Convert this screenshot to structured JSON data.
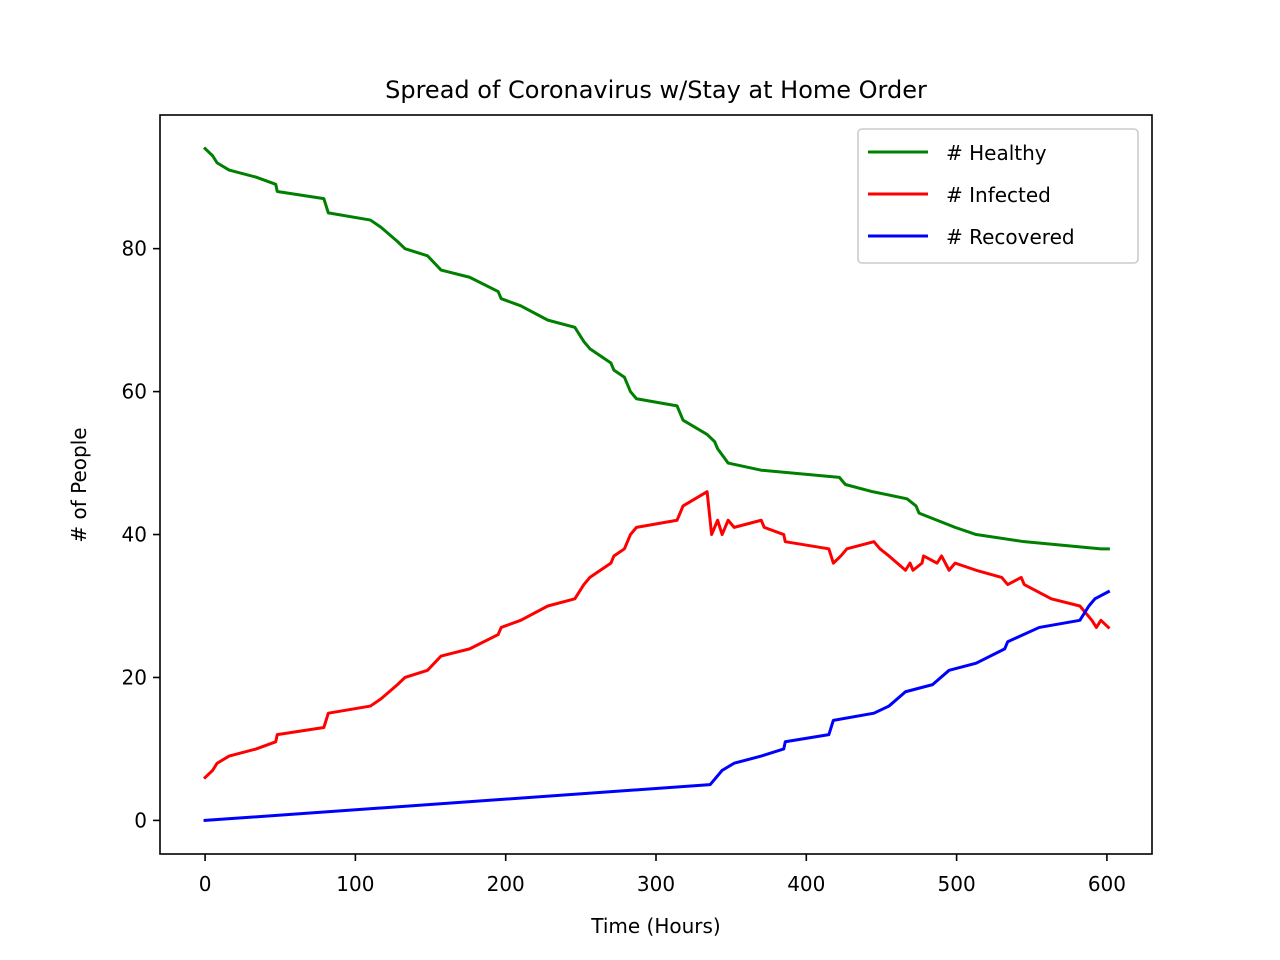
{
  "chart_data": {
    "type": "line",
    "title": "Spread of Coronavirus w/Stay at Home Order",
    "xlabel": "Time (Hours)",
    "ylabel": "# of People",
    "xlim": [
      -30,
      630
    ],
    "ylim": [
      -4.7,
      98.7
    ],
    "xticks": [
      0,
      100,
      200,
      300,
      400,
      500,
      600
    ],
    "yticks": [
      0,
      20,
      40,
      60,
      80
    ],
    "legend_position": "upper right",
    "grid": false,
    "series": [
      {
        "name": "# Healthy",
        "color": "#008000",
        "points": [
          [
            0,
            94
          ],
          [
            5,
            93
          ],
          [
            8,
            92
          ],
          [
            16,
            91
          ],
          [
            34,
            90
          ],
          [
            47,
            89
          ],
          [
            48,
            88
          ],
          [
            79,
            87
          ],
          [
            82,
            85
          ],
          [
            110,
            84
          ],
          [
            117,
            83
          ],
          [
            128,
            81
          ],
          [
            133,
            80
          ],
          [
            148,
            79
          ],
          [
            157,
            77
          ],
          [
            176,
            76
          ],
          [
            195,
            74
          ],
          [
            197,
            73
          ],
          [
            210,
            72
          ],
          [
            228,
            70
          ],
          [
            246,
            69
          ],
          [
            252,
            67
          ],
          [
            256,
            66
          ],
          [
            270,
            64
          ],
          [
            272,
            63
          ],
          [
            279,
            62
          ],
          [
            283,
            60
          ],
          [
            287,
            59
          ],
          [
            314,
            58
          ],
          [
            318,
            56
          ],
          [
            326,
            55
          ],
          [
            334,
            54
          ],
          [
            339,
            53
          ],
          [
            341,
            52
          ],
          [
            348,
            50
          ],
          [
            370,
            49
          ],
          [
            422,
            48
          ],
          [
            426,
            47
          ],
          [
            444,
            46
          ],
          [
            467,
            45
          ],
          [
            473,
            44
          ],
          [
            475,
            43
          ],
          [
            487,
            42
          ],
          [
            499,
            41
          ],
          [
            513,
            40
          ],
          [
            545,
            39
          ],
          [
            596,
            38
          ],
          [
            601,
            38
          ]
        ]
      },
      {
        "name": "# Infected",
        "color": "#ff0000",
        "points": [
          [
            0,
            6
          ],
          [
            5,
            7
          ],
          [
            8,
            8
          ],
          [
            16,
            9
          ],
          [
            34,
            10
          ],
          [
            47,
            11
          ],
          [
            48,
            12
          ],
          [
            79,
            13
          ],
          [
            82,
            15
          ],
          [
            110,
            16
          ],
          [
            117,
            17
          ],
          [
            128,
            19
          ],
          [
            133,
            20
          ],
          [
            148,
            21
          ],
          [
            157,
            23
          ],
          [
            176,
            24
          ],
          [
            195,
            26
          ],
          [
            197,
            27
          ],
          [
            210,
            28
          ],
          [
            228,
            30
          ],
          [
            246,
            31
          ],
          [
            252,
            33
          ],
          [
            256,
            34
          ],
          [
            270,
            36
          ],
          [
            272,
            37
          ],
          [
            279,
            38
          ],
          [
            283,
            40
          ],
          [
            287,
            41
          ],
          [
            314,
            42
          ],
          [
            318,
            44
          ],
          [
            326,
            45
          ],
          [
            334,
            46
          ],
          [
            337,
            40
          ],
          [
            341,
            42
          ],
          [
            344,
            40
          ],
          [
            348,
            42
          ],
          [
            352,
            41
          ],
          [
            370,
            42
          ],
          [
            372,
            41
          ],
          [
            385,
            40
          ],
          [
            386,
            39
          ],
          [
            415,
            38
          ],
          [
            418,
            36
          ],
          [
            423,
            37
          ],
          [
            427,
            38
          ],
          [
            445,
            39
          ],
          [
            449,
            38
          ],
          [
            455,
            37
          ],
          [
            466,
            35
          ],
          [
            469,
            36
          ],
          [
            471,
            35
          ],
          [
            477,
            36
          ],
          [
            478,
            37
          ],
          [
            487,
            36
          ],
          [
            490,
            37
          ],
          [
            495,
            35
          ],
          [
            499,
            36
          ],
          [
            513,
            35
          ],
          [
            530,
            34
          ],
          [
            534,
            33
          ],
          [
            543,
            34
          ],
          [
            545,
            33
          ],
          [
            563,
            31
          ],
          [
            582,
            30
          ],
          [
            590,
            28
          ],
          [
            593,
            27
          ],
          [
            596,
            28
          ],
          [
            601,
            27
          ]
        ]
      },
      {
        "name": "# Recovered",
        "color": "#0000ff",
        "points": [
          [
            0,
            0
          ],
          [
            336,
            5
          ],
          [
            344,
            7
          ],
          [
            352,
            8
          ],
          [
            370,
            9
          ],
          [
            385,
            10
          ],
          [
            386,
            11
          ],
          [
            415,
            12
          ],
          [
            418,
            14
          ],
          [
            445,
            15
          ],
          [
            455,
            16
          ],
          [
            466,
            18
          ],
          [
            484,
            19
          ],
          [
            495,
            21
          ],
          [
            513,
            22
          ],
          [
            532,
            24
          ],
          [
            534,
            25
          ],
          [
            555,
            27
          ],
          [
            582,
            28
          ],
          [
            588,
            30
          ],
          [
            592,
            31
          ],
          [
            601,
            32
          ]
        ]
      }
    ]
  }
}
